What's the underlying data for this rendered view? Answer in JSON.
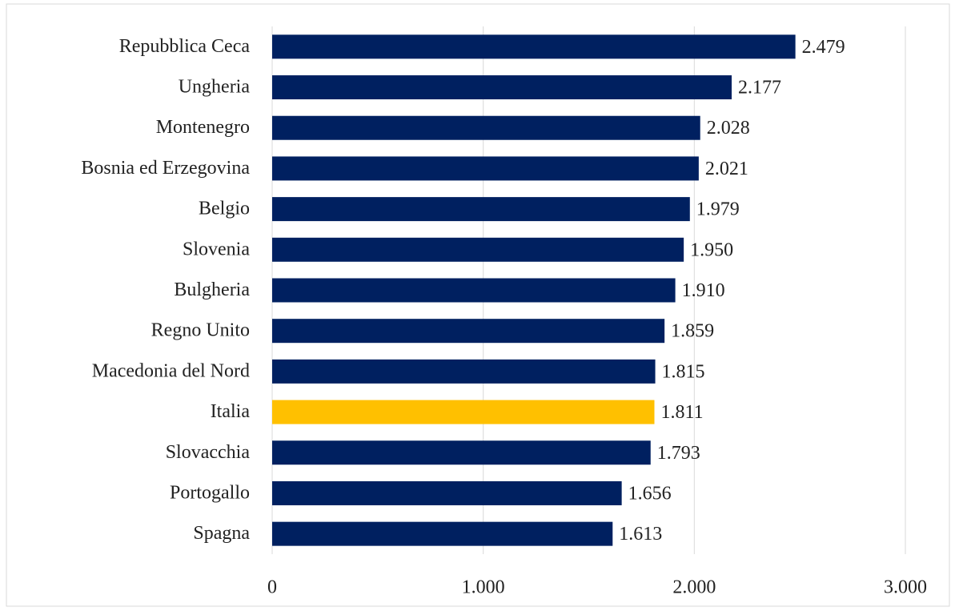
{
  "chart_data": {
    "type": "bar",
    "orientation": "horizontal",
    "categories": [
      "Repubblica Ceca",
      "Ungheria",
      "Montenegro",
      "Bosnia ed Erzegovina",
      "Belgio",
      "Slovenia",
      "Bulgheria",
      "Regno Unito",
      "Macedonia del Nord",
      "Italia",
      "Slovacchia",
      "Portogallo",
      "Spagna"
    ],
    "values": [
      2479,
      2177,
      2028,
      2021,
      1979,
      1950,
      1910,
      1859,
      1815,
      1811,
      1793,
      1656,
      1613
    ],
    "value_labels": [
      "2.479",
      "2.177",
      "2.028",
      "2.021",
      "1.979",
      "1.950",
      "1.910",
      "1.859",
      "1.815",
      "1.811",
      "1.793",
      "1.656",
      "1.613"
    ],
    "colors": [
      "#002060",
      "#002060",
      "#002060",
      "#002060",
      "#002060",
      "#002060",
      "#002060",
      "#002060",
      "#002060",
      "#ffc000",
      "#002060",
      "#002060",
      "#002060"
    ],
    "xlim": [
      0,
      3000
    ],
    "xticks": [
      0,
      {
        "value": 1000,
        "label": "1.000"
      },
      {
        "value": 2000,
        "label": "2.000"
      },
      {
        "value": 3000,
        "label": "3.000"
      }
    ],
    "grid": true
  }
}
